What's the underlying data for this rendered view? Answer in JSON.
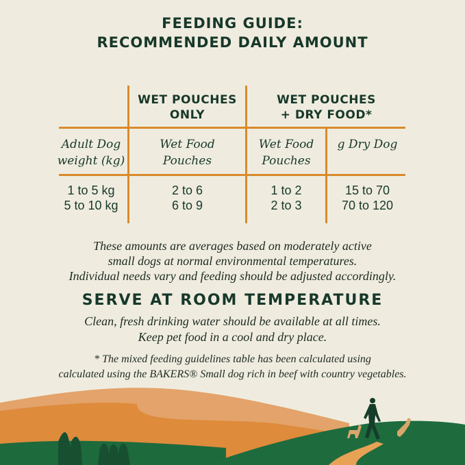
{
  "title": {
    "line1": "FEEDING GUIDE:",
    "line2": "RECOMMENDED DAILY AMOUNT"
  },
  "table": {
    "group_headers": [
      {
        "line1": "WET POUCHES",
        "line2": "ONLY"
      },
      {
        "line1": "WET POUCHES",
        "line2": "+ DRY FOOD*"
      }
    ],
    "column_headers": [
      {
        "line1": "Adult Dog",
        "line2": "weight (kg)"
      },
      {
        "line1": "Wet Food",
        "line2": "Pouches"
      },
      {
        "line1": "Wet Food",
        "line2": "Pouches"
      },
      {
        "line1": "g Dry Dog",
        "line2": ""
      }
    ],
    "rows": [
      [
        "1 to 5 kg",
        "2 to 6",
        "1 to 2",
        "15 to 70"
      ],
      [
        "5 to 10 kg",
        "6 to 9",
        "2 to 3",
        "70 to 120"
      ]
    ]
  },
  "note": {
    "line1": "These amounts are averages based on moderately active",
    "line2": "small dogs at normal environmental temperatures.",
    "line3": "Individual needs vary and feeding should be adjusted accordingly."
  },
  "serve": {
    "heading": "SERVE AT ROOM TEMPERATURE",
    "line1": "Clean, fresh drinking water should be available at all times.",
    "line2": "Keep pet food in a cool and dry place."
  },
  "footnote": {
    "line1": "* The mixed feeding guidelines table has been calculated using",
    "line2": "calculated using the BAKERS® Small dog rich in beef with country vegetables."
  },
  "colors": {
    "background": "#efecdf",
    "text": "#17382a",
    "table_lines": "#d98a2c",
    "hills_orange": "#e08a3a",
    "hills_green": "#1e6b3e"
  }
}
